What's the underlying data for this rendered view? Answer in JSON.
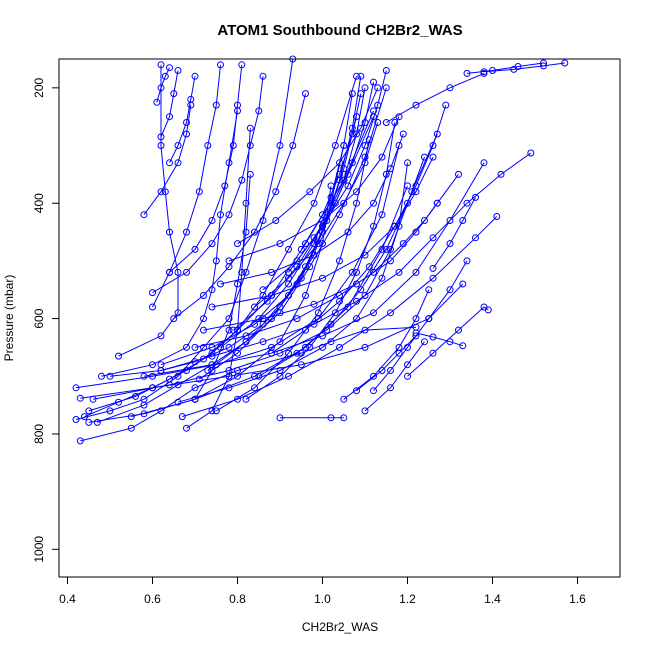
{
  "chart_data": {
    "type": "line",
    "title": "ATOM1 Southbound CH2Br2_WAS",
    "xlabel": "CH2Br2_WAS",
    "ylabel": "Pressure (mbar)",
    "xlim": [
      0.38,
      1.7
    ],
    "ylim": [
      1048,
      150
    ],
    "y_reversed": true,
    "grid": false,
    "legend": "none",
    "x_ticks": [
      0.4,
      0.6,
      0.8,
      1.0,
      1.2,
      1.4,
      1.6
    ],
    "x_tick_labels": [
      "0.4",
      "0.6",
      "0.8",
      "1.0",
      "1.2",
      "1.4",
      "1.6"
    ],
    "y_ticks": [
      200,
      400,
      600,
      800,
      1000
    ],
    "y_tick_labels": [
      "200",
      "400",
      "600",
      "800",
      "1000"
    ],
    "color": "#0000ff",
    "marker": "open-circle",
    "series": [
      {
        "x": [
          0.43,
          0.55,
          0.62,
          0.7,
          0.8,
          0.95,
          1.02,
          1.1,
          1.22
        ],
        "y": [
          812,
          790,
          760,
          720,
          690,
          660,
          640,
          620,
          615
        ]
      },
      {
        "x": [
          0.42,
          0.5,
          0.58,
          0.66,
          0.72,
          0.78,
          0.82,
          0.86,
          0.9,
          0.93
        ],
        "y": [
          775,
          760,
          740,
          700,
          650,
          600,
          520,
          430,
          300,
          150
        ]
      },
      {
        "x": [
          0.44,
          0.52,
          0.6,
          0.68,
          0.74,
          0.8,
          0.88,
          0.96,
          1.05,
          1.12
        ],
        "y": [
          770,
          745,
          720,
          690,
          660,
          620,
          560,
          470,
          360,
          240
        ]
      },
      {
        "x": [
          0.45,
          0.56,
          0.64,
          0.72,
          0.8,
          0.86,
          0.92,
          0.98,
          1.03,
          1.08
        ],
        "y": [
          760,
          735,
          705,
          670,
          620,
          560,
          480,
          400,
          300,
          180
        ]
      },
      {
        "x": [
          0.47,
          0.58,
          0.66,
          0.74,
          0.82,
          0.9,
          0.97,
          1.04,
          1.1,
          1.15
        ],
        "y": [
          780,
          750,
          715,
          680,
          640,
          590,
          510,
          420,
          320,
          200
        ]
      },
      {
        "x": [
          0.5,
          0.62,
          0.7,
          0.78,
          0.86,
          0.94,
          1.0,
          1.06,
          1.12
        ],
        "y": [
          700,
          690,
          675,
          650,
          610,
          540,
          450,
          350,
          250
        ]
      },
      {
        "x": [
          0.42,
          0.6,
          0.75,
          0.88,
          0.99,
          1.07,
          1.14,
          1.18
        ],
        "y": [
          720,
          700,
          680,
          650,
          600,
          520,
          420,
          300
        ]
      },
      {
        "x": [
          0.46,
          0.64,
          0.78,
          0.9,
          1.01,
          1.1,
          1.16,
          1.21,
          1.27
        ],
        "y": [
          740,
          715,
          690,
          660,
          620,
          560,
          480,
          380,
          280
        ]
      },
      {
        "x": [
          0.48,
          0.6,
          0.68,
          0.72,
          0.74,
          0.75,
          0.76,
          0.78,
          0.8
        ],
        "y": [
          700,
          680,
          650,
          600,
          550,
          500,
          420,
          330,
          240
        ]
      },
      {
        "x": [
          0.52,
          0.62,
          0.66,
          0.66,
          0.64,
          0.63,
          0.62,
          0.62
        ],
        "y": [
          665,
          630,
          590,
          520,
          450,
          380,
          300,
          160
        ]
      },
      {
        "x": [
          0.55,
          0.7,
          0.84,
          0.96,
          1.06,
          1.14,
          1.2
        ],
        "y": [
          770,
          740,
          700,
          650,
          580,
          480,
          370
        ]
      },
      {
        "x": [
          0.43,
          0.6,
          0.78,
          0.95,
          1.1,
          1.25,
          1.33
        ],
        "y": [
          738,
          720,
          700,
          680,
          650,
          600,
          540
        ]
      },
      {
        "x": [
          0.58,
          0.74,
          0.88,
          1.0,
          1.12,
          1.22,
          1.3,
          1.38
        ],
        "y": [
          700,
          680,
          660,
          630,
          590,
          520,
          430,
          330
        ]
      },
      {
        "x": [
          0.62,
          0.74,
          0.84,
          0.92,
          0.98,
          1.02,
          1.05
        ],
        "y": [
          680,
          650,
          610,
          560,
          490,
          400,
          300
        ]
      },
      {
        "x": [
          0.45,
          0.58,
          0.7,
          0.8,
          0.9,
          0.96,
          1.0,
          1.02
        ],
        "y": [
          780,
          765,
          740,
          700,
          640,
          560,
          470,
          370
        ]
      },
      {
        "x": [
          0.6,
          0.68,
          0.74,
          0.78,
          0.81,
          0.83,
          0.85,
          0.86
        ],
        "y": [
          555,
          520,
          470,
          420,
          360,
          300,
          240,
          180
        ]
      },
      {
        "x": [
          0.65,
          0.72,
          0.78,
          0.84,
          0.89,
          0.93,
          0.96
        ],
        "y": [
          600,
          560,
          510,
          450,
          380,
          300,
          210
        ]
      },
      {
        "x": [
          0.67,
          0.8,
          0.92,
          1.04,
          1.16,
          1.26,
          1.36,
          1.41
        ],
        "y": [
          770,
          740,
          700,
          650,
          590,
          530,
          460,
          423
        ]
      },
      {
        "x": [
          0.7,
          0.82,
          0.94,
          1.04,
          1.12,
          1.19,
          1.24,
          1.27
        ],
        "y": [
          650,
          630,
          600,
          560,
          520,
          470,
          430,
          400
        ]
      },
      {
        "x": [
          0.72,
          0.86,
          0.98,
          1.08,
          1.16,
          1.22,
          1.27,
          1.32
        ],
        "y": [
          620,
          600,
          575,
          540,
          500,
          450,
          400,
          350
        ]
      },
      {
        "x": [
          0.74,
          0.88,
          1.0,
          1.1,
          1.17,
          1.22,
          1.26
        ],
        "y": [
          580,
          560,
          530,
          490,
          440,
          380,
          320
        ]
      },
      {
        "x": [
          0.76,
          0.88,
          0.98,
          1.06,
          1.12,
          1.16,
          1.19
        ],
        "y": [
          540,
          520,
          490,
          450,
          400,
          340,
          280
        ]
      },
      {
        "x": [
          0.78,
          0.9,
          1.0,
          1.08,
          1.14,
          1.18
        ],
        "y": [
          500,
          470,
          430,
          380,
          320,
          250
        ]
      },
      {
        "x": [
          0.8,
          0.89,
          0.97,
          1.04,
          1.09,
          1.13
        ],
        "y": [
          470,
          430,
          380,
          330,
          270,
          200
        ]
      },
      {
        "x": [
          0.9,
          1.02,
          1.05
        ],
        "y": [
          772,
          772,
          772
        ]
      },
      {
        "x": [
          0.62,
          0.74,
          0.86,
          0.98,
          1.08,
          1.18,
          1.26,
          1.34,
          1.42,
          1.49
        ],
        "y": [
          690,
          665,
          640,
          610,
          570,
          520,
          460,
          400,
          350,
          313
        ]
      },
      {
        "x": [
          0.66,
          0.78,
          0.9,
          1.0,
          1.08,
          1.14,
          1.18,
          1.2
        ],
        "y": [
          745,
          720,
          690,
          650,
          600,
          530,
          440,
          330
        ]
      },
      {
        "x": [
          0.68,
          0.74,
          0.78,
          0.8,
          0.81,
          0.82,
          0.83
        ],
        "y": [
          790,
          760,
          700,
          620,
          520,
          400,
          270
        ]
      },
      {
        "x": [
          0.6,
          0.64,
          0.68,
          0.71,
          0.73,
          0.75,
          0.76
        ],
        "y": [
          580,
          520,
          450,
          380,
          300,
          230,
          160
        ]
      },
      {
        "x": [
          0.71,
          0.8,
          0.88,
          0.95,
          1.0,
          1.04,
          1.07,
          1.09
        ],
        "y": [
          705,
          660,
          600,
          530,
          450,
          360,
          270,
          180
        ]
      },
      {
        "x": [
          0.75,
          0.84,
          0.92,
          0.99,
          1.04,
          1.08,
          1.11
        ],
        "y": [
          760,
          720,
          660,
          590,
          500,
          400,
          290
        ]
      },
      {
        "x": [
          0.82,
          0.9,
          0.97,
          1.03,
          1.08,
          1.12,
          1.15,
          1.17
        ],
        "y": [
          740,
          700,
          650,
          590,
          520,
          440,
          350,
          260
        ]
      },
      {
        "x": [
          0.85,
          0.94,
          1.02,
          1.09,
          1.15,
          1.2,
          1.24
        ],
        "y": [
          700,
          660,
          610,
          550,
          480,
          400,
          320
        ]
      },
      {
        "x": [
          0.88,
          0.96,
          1.04,
          1.11,
          1.17,
          1.22,
          1.26,
          1.29
        ],
        "y": [
          660,
          620,
          570,
          510,
          440,
          370,
          300,
          230
        ]
      },
      {
        "x": [
          1.05,
          1.12,
          1.18,
          1.22,
          1.25
        ],
        "y": [
          740,
          700,
          650,
          600,
          550
        ]
      },
      {
        "x": [
          1.08,
          1.14,
          1.18,
          1.22
        ],
        "y": [
          725,
          690,
          660,
          630
        ]
      },
      {
        "x": [
          1.1,
          1.16,
          1.2,
          1.24
        ],
        "y": [
          760,
          720,
          680,
          640
        ]
      },
      {
        "x": [
          1.12,
          1.16,
          1.2,
          1.25,
          1.3,
          1.34
        ],
        "y": [
          725,
          690,
          650,
          600,
          550,
          500
        ]
      },
      {
        "x": [
          1.2,
          1.26,
          1.32,
          1.38,
          1.39
        ],
        "y": [
          700,
          660,
          620,
          580,
          585
        ]
      },
      {
        "x": [
          1.26,
          1.3,
          1.33,
          1.36
        ],
        "y": [
          513,
          470,
          430,
          390
        ]
      },
      {
        "x": [
          1.33,
          1.3,
          1.26,
          1.22
        ],
        "y": [
          647,
          640,
          632,
          625
        ]
      },
      {
        "x": [
          0.64,
          0.7,
          0.74,
          0.77,
          0.79,
          0.8,
          0.81
        ],
        "y": [
          520,
          480,
          430,
          370,
          300,
          230,
          160
        ]
      },
      {
        "x": [
          0.7,
          0.74,
          0.78,
          0.8,
          0.82,
          0.83
        ],
        "y": [
          740,
          690,
          620,
          540,
          450,
          350
        ]
      },
      {
        "x": [
          0.73,
          0.82,
          0.9,
          0.96,
          1.01,
          1.05,
          1.08
        ],
        "y": [
          690,
          640,
          580,
          510,
          430,
          340,
          250
        ]
      },
      {
        "x": [
          0.76,
          0.85,
          0.92,
          0.98,
          1.02,
          1.05,
          1.07
        ],
        "y": [
          650,
          600,
          540,
          470,
          390,
          300,
          210
        ]
      },
      {
        "x": [
          0.79,
          0.87,
          0.94,
          1.0,
          1.05,
          1.08,
          1.1
        ],
        "y": [
          620,
          570,
          510,
          440,
          360,
          280,
          200
        ]
      },
      {
        "x": [
          0.84,
          0.92,
          0.99,
          1.05,
          1.1,
          1.13
        ],
        "y": [
          580,
          530,
          470,
          400,
          330,
          260
        ]
      },
      {
        "x": [
          0.86,
          0.94,
          1.0,
          1.06,
          1.1,
          1.13,
          1.15
        ],
        "y": [
          550,
          500,
          440,
          370,
          300,
          230,
          170
        ]
      },
      {
        "x": [
          0.92,
          0.98,
          1.03,
          1.07,
          1.1,
          1.12
        ],
        "y": [
          520,
          460,
          400,
          330,
          260,
          190
        ]
      },
      {
        "x": [
          0.95,
          1.0,
          1.04,
          1.07,
          1.09
        ],
        "y": [
          480,
          420,
          350,
          280,
          210
        ]
      },
      {
        "x": [
          0.58,
          0.62,
          0.66,
          0.68,
          0.69
        ],
        "y": [
          420,
          380,
          330,
          280,
          230
        ]
      },
      {
        "x": [
          0.61,
          0.62,
          0.63,
          0.64
        ],
        "y": [
          225,
          200,
          180,
          165
        ]
      },
      {
        "x": [
          0.62,
          0.64,
          0.65,
          0.66
        ],
        "y": [
          285,
          250,
          210,
          170
        ]
      },
      {
        "x": [
          0.64,
          0.66,
          0.68,
          0.69,
          0.7
        ],
        "y": [
          330,
          300,
          260,
          220,
          180
        ]
      },
      {
        "x": [
          1.38,
          1.45,
          1.52,
          1.57
        ],
        "y": [
          172,
          168,
          162,
          157
        ]
      },
      {
        "x": [
          1.34,
          1.4,
          1.46,
          1.52
        ],
        "y": [
          175,
          170,
          163,
          157
        ]
      },
      {
        "x": [
          1.15,
          1.22,
          1.3,
          1.38
        ],
        "y": [
          260,
          230,
          200,
          175
        ]
      }
    ]
  }
}
